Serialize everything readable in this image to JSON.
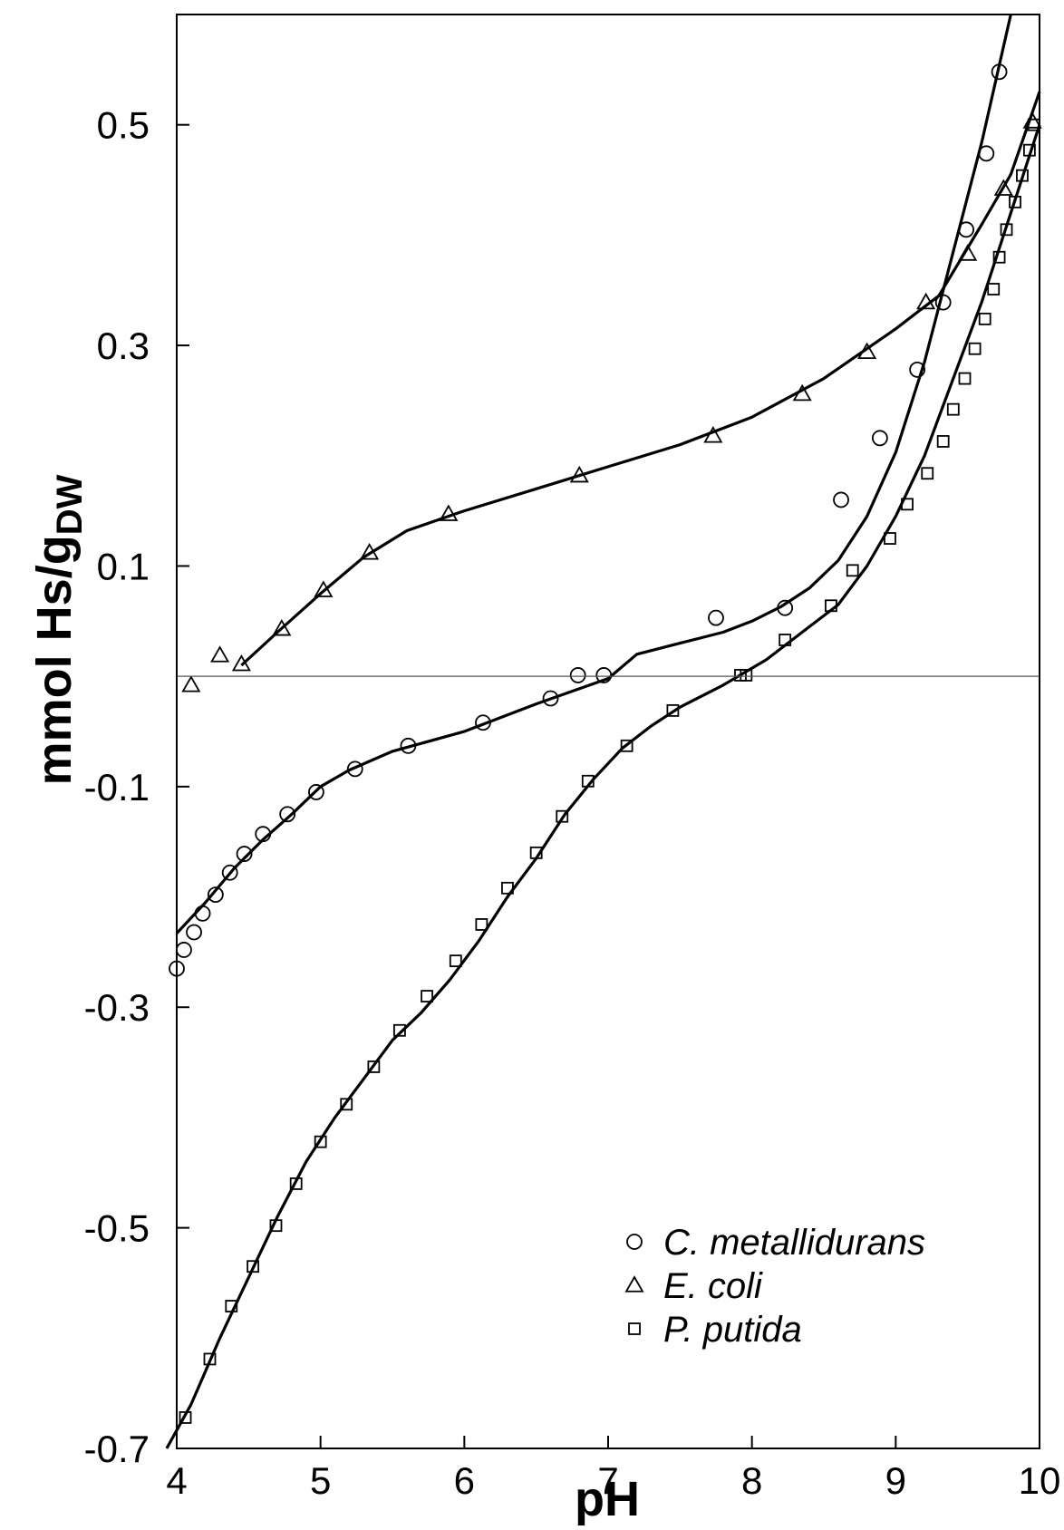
{
  "chart_data": {
    "type": "scatter",
    "title": "",
    "xlabel": "pH",
    "ylabel": "mmol Hs/g",
    "ylabel_subscript": "DW",
    "xlim": [
      4,
      10
    ],
    "ylim": [
      -0.7,
      0.6
    ],
    "xticks": [
      4,
      5,
      6,
      7,
      8,
      9,
      10
    ],
    "yticks": [
      -0.7,
      -0.5,
      -0.3,
      -0.1,
      0.1,
      0.3,
      0.5
    ],
    "xtick_labels": [
      "4",
      "5",
      "6",
      "7",
      "8",
      "9",
      "10"
    ],
    "ytick_labels": [
      "-0.7",
      "-0.5",
      "-0.3",
      "-0.1",
      "0.1",
      "0.3",
      "0.5"
    ],
    "zero_line": true,
    "grid": false,
    "legend_position": "bottom-right",
    "series": [
      {
        "name": "C. metallidurans",
        "marker": "circle",
        "points": [
          [
            4.0,
            -0.265
          ],
          [
            4.05,
            -0.248
          ],
          [
            4.12,
            -0.232
          ],
          [
            4.18,
            -0.215
          ],
          [
            4.27,
            -0.198
          ],
          [
            4.37,
            -0.178
          ],
          [
            4.47,
            -0.161
          ],
          [
            4.6,
            -0.143
          ],
          [
            4.77,
            -0.125
          ],
          [
            4.97,
            -0.105
          ],
          [
            5.24,
            -0.084
          ],
          [
            5.61,
            -0.063
          ],
          [
            6.13,
            -0.042
          ],
          [
            6.6,
            -0.02
          ],
          [
            6.79,
            0.001
          ],
          [
            6.97,
            0.001
          ],
          [
            7.75,
            0.053
          ],
          [
            8.23,
            0.062
          ],
          [
            8.62,
            0.16
          ],
          [
            8.89,
            0.216
          ],
          [
            9.15,
            0.278
          ],
          [
            9.33,
            0.339
          ],
          [
            9.49,
            0.405
          ],
          [
            9.63,
            0.474
          ],
          [
            9.72,
            0.548
          ]
        ],
        "fit": [
          [
            4.0,
            -0.233
          ],
          [
            4.2,
            -0.205
          ],
          [
            4.4,
            -0.174
          ],
          [
            4.6,
            -0.148
          ],
          [
            4.8,
            -0.125
          ],
          [
            5.0,
            -0.1
          ],
          [
            5.2,
            -0.085
          ],
          [
            5.5,
            -0.068
          ],
          [
            6.0,
            -0.05
          ],
          [
            6.5,
            -0.025
          ],
          [
            7.0,
            -0.002
          ],
          [
            7.2,
            0.02
          ],
          [
            7.5,
            0.03
          ],
          [
            7.8,
            0.04
          ],
          [
            8.0,
            0.05
          ],
          [
            8.2,
            0.063
          ],
          [
            8.4,
            0.08
          ],
          [
            8.6,
            0.105
          ],
          [
            8.8,
            0.145
          ],
          [
            9.0,
            0.203
          ],
          [
            9.2,
            0.285
          ],
          [
            9.4,
            0.385
          ],
          [
            9.6,
            0.485
          ],
          [
            9.8,
            0.6
          ]
        ]
      },
      {
        "name": "E. coli",
        "marker": "triangle",
        "points": [
          [
            4.1,
            -0.008
          ],
          [
            4.3,
            0.019
          ],
          [
            4.45,
            0.011
          ],
          [
            4.73,
            0.043
          ],
          [
            5.02,
            0.078
          ],
          [
            5.34,
            0.112
          ],
          [
            5.89,
            0.147
          ],
          [
            6.8,
            0.182
          ],
          [
            7.73,
            0.218
          ],
          [
            8.35,
            0.256
          ],
          [
            8.8,
            0.294
          ],
          [
            9.21,
            0.339
          ],
          [
            9.5,
            0.383
          ],
          [
            9.75,
            0.442
          ],
          [
            9.95,
            0.503
          ]
        ],
        "fit": [
          [
            4.45,
            0.01
          ],
          [
            4.7,
            0.04
          ],
          [
            5.0,
            0.075
          ],
          [
            5.3,
            0.108
          ],
          [
            5.6,
            0.132
          ],
          [
            6.0,
            0.15
          ],
          [
            6.5,
            0.17
          ],
          [
            7.0,
            0.19
          ],
          [
            7.5,
            0.21
          ],
          [
            8.0,
            0.235
          ],
          [
            8.5,
            0.27
          ],
          [
            9.0,
            0.315
          ],
          [
            9.3,
            0.345
          ],
          [
            9.6,
            0.41
          ],
          [
            9.8,
            0.455
          ],
          [
            10.0,
            0.53
          ]
        ]
      },
      {
        "name": "P. putida",
        "marker": "square",
        "points": [
          [
            4.06,
            -0.672
          ],
          [
            4.23,
            -0.619
          ],
          [
            4.38,
            -0.571
          ],
          [
            4.53,
            -0.535
          ],
          [
            4.69,
            -0.498
          ],
          [
            4.83,
            -0.46
          ],
          [
            5.0,
            -0.422
          ],
          [
            5.18,
            -0.388
          ],
          [
            5.37,
            -0.354
          ],
          [
            5.55,
            -0.321
          ],
          [
            5.74,
            -0.29
          ],
          [
            5.94,
            -0.258
          ],
          [
            6.12,
            -0.225
          ],
          [
            6.3,
            -0.192
          ],
          [
            6.5,
            -0.16
          ],
          [
            6.68,
            -0.127
          ],
          [
            6.86,
            -0.095
          ],
          [
            7.13,
            -0.063
          ],
          [
            7.45,
            -0.031
          ],
          [
            7.92,
            0.001
          ],
          [
            7.96,
            0.001
          ],
          [
            8.23,
            0.033
          ],
          [
            8.55,
            0.064
          ],
          [
            8.7,
            0.096
          ],
          [
            8.96,
            0.125
          ],
          [
            9.08,
            0.156
          ],
          [
            9.22,
            0.184
          ],
          [
            9.33,
            0.213
          ],
          [
            9.4,
            0.242
          ],
          [
            9.48,
            0.27
          ],
          [
            9.55,
            0.297
          ],
          [
            9.62,
            0.324
          ],
          [
            9.68,
            0.351
          ],
          [
            9.72,
            0.38
          ],
          [
            9.77,
            0.405
          ],
          [
            9.83,
            0.43
          ],
          [
            9.88,
            0.454
          ],
          [
            9.93,
            0.477
          ],
          [
            9.96,
            0.5
          ]
        ],
        "fit": [
          [
            3.93,
            -0.7
          ],
          [
            4.1,
            -0.66
          ],
          [
            4.3,
            -0.6
          ],
          [
            4.5,
            -0.545
          ],
          [
            4.7,
            -0.49
          ],
          [
            4.9,
            -0.44
          ],
          [
            5.1,
            -0.4
          ],
          [
            5.3,
            -0.365
          ],
          [
            5.5,
            -0.33
          ],
          [
            5.7,
            -0.305
          ],
          [
            5.9,
            -0.275
          ],
          [
            6.1,
            -0.24
          ],
          [
            6.3,
            -0.2
          ],
          [
            6.5,
            -0.165
          ],
          [
            6.7,
            -0.125
          ],
          [
            6.9,
            -0.093
          ],
          [
            7.1,
            -0.065
          ],
          [
            7.3,
            -0.045
          ],
          [
            7.5,
            -0.028
          ],
          [
            7.8,
            -0.008
          ],
          [
            8.1,
            0.015
          ],
          [
            8.4,
            0.045
          ],
          [
            8.6,
            0.065
          ],
          [
            8.8,
            0.1
          ],
          [
            9.0,
            0.145
          ],
          [
            9.2,
            0.2
          ],
          [
            9.4,
            0.27
          ],
          [
            9.6,
            0.34
          ],
          [
            9.8,
            0.42
          ],
          [
            10.0,
            0.5
          ]
        ]
      }
    ]
  }
}
